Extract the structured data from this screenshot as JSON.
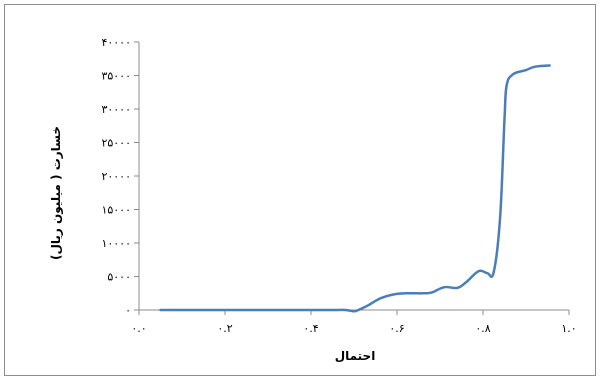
{
  "chart_data": {
    "type": "line",
    "title": "",
    "xlabel": "احتمال",
    "ylabel": "خسارت ( میلیون ریال)",
    "xlim": [
      0,
      1
    ],
    "ylim": [
      0,
      40000
    ],
    "x_tick_labels": [
      "۰.۰",
      "۰.۲",
      "۰.۴",
      "۰.۶",
      "۰.۸",
      "۱.۰"
    ],
    "y_tick_labels": [
      "۰",
      "۵۰۰۰",
      "۱۰۰۰۰",
      "۱۵۰۰۰",
      "۲۰۰۰۰",
      "۲۵۰۰۰",
      "۳۰۰۰۰",
      "۳۵۰۰۰",
      "۴۰۰۰۰"
    ],
    "grid": false,
    "legend": "none",
    "line_color": "#4a7ebb",
    "series": [
      {
        "x": [
          0.05,
          0.1,
          0.2,
          0.3,
          0.4,
          0.45,
          0.48,
          0.5,
          0.51,
          0.53,
          0.56,
          0.59,
          0.62,
          0.66,
          0.68,
          0.71,
          0.74,
          0.76,
          0.79,
          0.81,
          0.825,
          0.84,
          0.85,
          0.855,
          0.87,
          0.9,
          0.92,
          0.955
        ],
        "y": [
          0,
          0,
          0,
          0,
          0,
          0,
          0,
          -200,
          0,
          600,
          1700,
          2300,
          2500,
          2500,
          2600,
          3400,
          3300,
          4100,
          5800,
          5500,
          5700,
          14000,
          28500,
          33500,
          35200,
          35800,
          36300,
          36500
        ]
      }
    ]
  }
}
